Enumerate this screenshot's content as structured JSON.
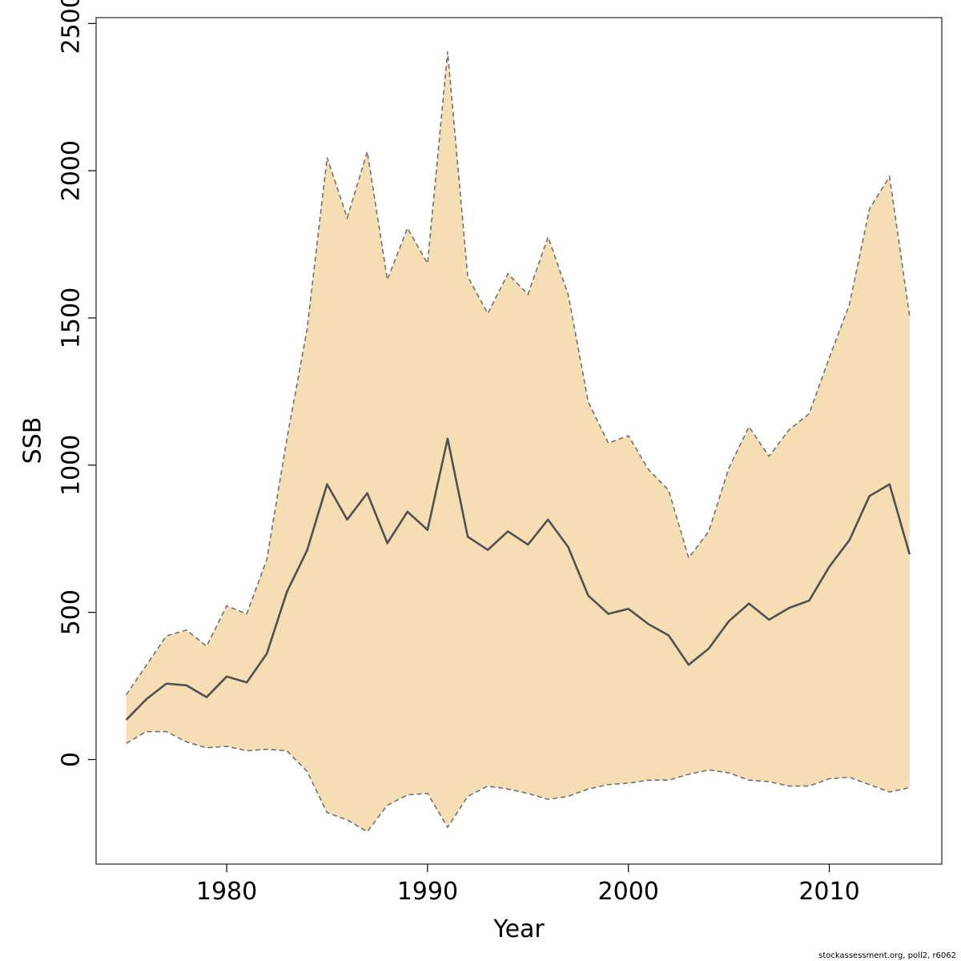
{
  "chart_data": {
    "type": "area",
    "xlabel": "Year",
    "ylabel": "SSB",
    "xlim": [
      1973.5,
      2015.6
    ],
    "ylim": [
      -355,
      2520
    ],
    "x_ticks": [
      1980,
      1990,
      2000,
      2010
    ],
    "y_ticks": [
      0,
      500,
      1000,
      1500,
      2000,
      2500
    ],
    "grid": false,
    "legend": "none",
    "colors": {
      "band": "#f5deb3",
      "line": "#505050",
      "bound": "#707070",
      "frame": "#333333"
    },
    "years": [
      1975,
      1976,
      1977,
      1978,
      1979,
      1980,
      1981,
      1982,
      1983,
      1984,
      1985,
      1986,
      1987,
      1988,
      1989,
      1990,
      1991,
      1992,
      1993,
      1994,
      1995,
      1996,
      1997,
      1998,
      1999,
      2000,
      2001,
      2002,
      2003,
      2004,
      2005,
      2006,
      2007,
      2008,
      2009,
      2010,
      2011,
      2012,
      2013,
      2014
    ],
    "series": [
      {
        "values": [
          135,
          205,
          258,
          252,
          212,
          282,
          262,
          360,
          570,
          710,
          935,
          815,
          905,
          735,
          842,
          780,
          1090,
          757,
          712,
          775,
          730,
          815,
          722,
          557,
          495,
          512,
          460,
          422,
          322,
          377,
          470,
          530,
          475,
          515,
          540,
          655,
          745,
          895,
          935,
          697
        ]
      },
      {
        "values": [
          220,
          320,
          420,
          440,
          385,
          522,
          495,
          680,
          1090,
          1460,
          2045,
          1840,
          2065,
          1630,
          1805,
          1685,
          2405,
          1640,
          1515,
          1650,
          1580,
          1775,
          1580,
          1215,
          1075,
          1100,
          985,
          915,
          685,
          775,
          990,
          1130,
          1030,
          1120,
          1175,
          1365,
          1545,
          1870,
          1980,
          1505
        ]
      },
      {
        "values": [
          55,
          95,
          95,
          60,
          40,
          45,
          30,
          35,
          30,
          -40,
          -180,
          -205,
          -245,
          -155,
          -120,
          -115,
          -230,
          -125,
          -90,
          -100,
          -115,
          -135,
          -125,
          -100,
          -85,
          -80,
          -70,
          -70,
          -50,
          -35,
          -45,
          -70,
          -75,
          -90,
          -90,
          -65,
          -60,
          -85,
          -110,
          -95
        ]
      }
    ]
  },
  "footer": {
    "credit": "stockassessment.org, poll2, r6062"
  }
}
